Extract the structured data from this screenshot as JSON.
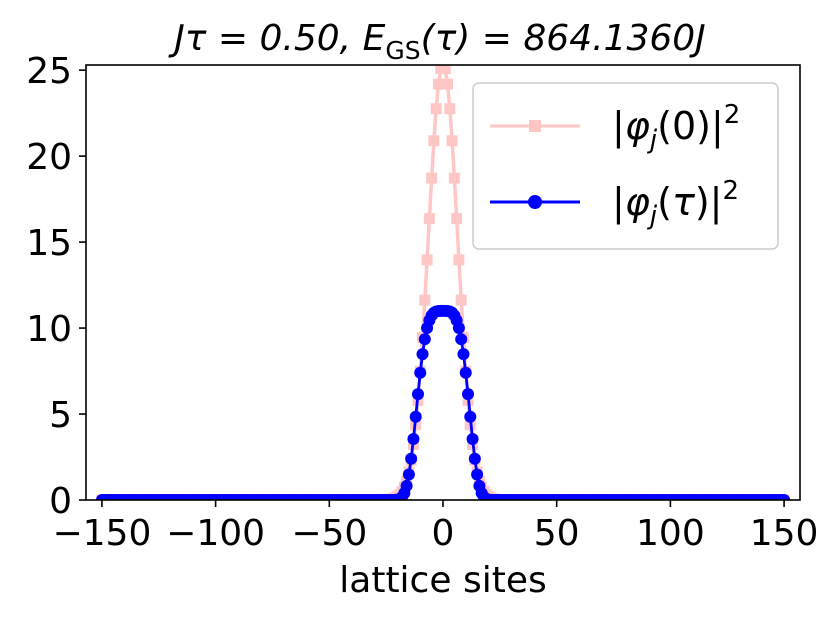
{
  "chart_data": {
    "type": "line",
    "title": {
      "part1": "Jτ = 0.50,  E",
      "sub": "GS",
      "part2": "(τ) = 864.1360J"
    },
    "xlabel": "lattice sites",
    "ylabel": "",
    "xlim": [
      -157,
      157
    ],
    "ylim": [
      0,
      25.3
    ],
    "xticks": [
      -150,
      -100,
      -50,
      0,
      50,
      100,
      150
    ],
    "xtick_labels": [
      "−150",
      "−100",
      "−50",
      "0",
      "50",
      "100",
      "150"
    ],
    "yticks": [
      0,
      5,
      10,
      15,
      20,
      25
    ],
    "ytick_labels": [
      "0",
      "5",
      "10",
      "15",
      "20",
      "25"
    ],
    "grid": false,
    "legend_position": "top-right",
    "series": [
      {
        "name": "|φj(0)|²",
        "color": "#ff0000",
        "opacity": 0.22,
        "marker": "square",
        "x_range": [
          -150,
          150
        ],
        "peak": 25.4,
        "width": 6.4,
        "shape": "gaussian"
      },
      {
        "name": "|φj(τ)|²",
        "color": "#0000ff",
        "opacity": 1,
        "marker": "circle",
        "x_range": [
          -150,
          150
        ],
        "peak": 11.0,
        "width": 10.6,
        "power": 4,
        "shape": "supergaussian"
      }
    ]
  }
}
